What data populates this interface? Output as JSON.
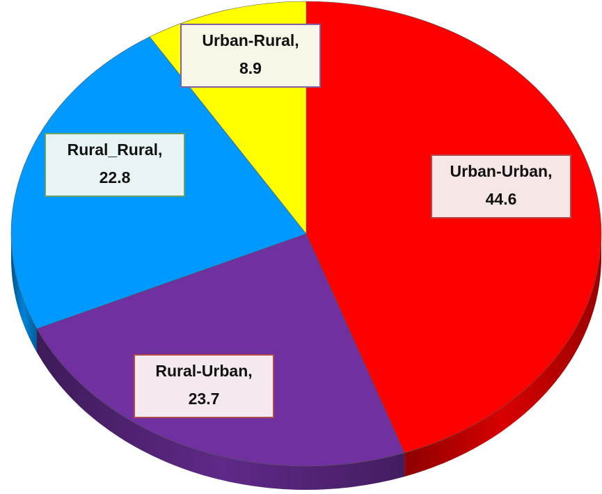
{
  "chart_data": {
    "type": "pie3d",
    "categories": [
      "Urban-Urban,",
      "Rural-Urban,",
      "Rural_Rural,",
      "Urban-Rural,"
    ],
    "values": [
      44.6,
      23.7,
      22.8,
      8.9
    ],
    "colors": [
      "#ff0000",
      "#7030a0",
      "#0099ff",
      "#ffff00"
    ]
  }
}
